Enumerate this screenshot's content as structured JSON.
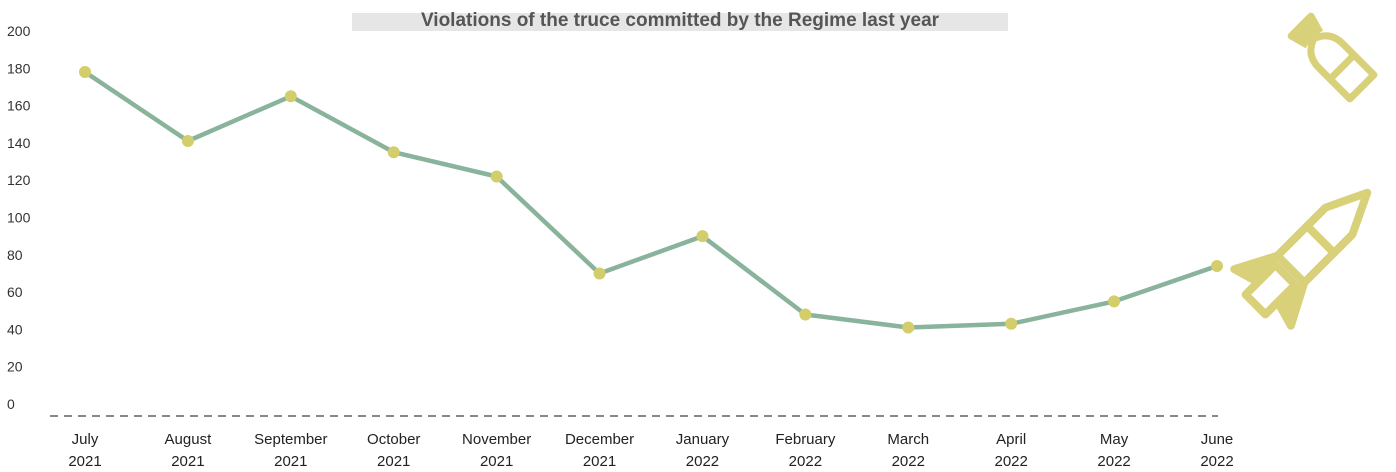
{
  "chart_data": {
    "type": "line",
    "title": "Violations of the truce committed by the Regime last year",
    "xlabel": "",
    "ylabel": "",
    "ylim": [
      0,
      200
    ],
    "yticks": [
      "0",
      "20",
      "40",
      "60",
      "80",
      "100",
      "120",
      "140",
      "160",
      "180",
      "200"
    ],
    "categories": [
      [
        "July",
        "2021"
      ],
      [
        "August",
        "2021"
      ],
      [
        "September",
        "2021"
      ],
      [
        "October",
        "2021"
      ],
      [
        "November",
        "2021"
      ],
      [
        "December",
        "2021"
      ],
      [
        "January",
        "2022"
      ],
      [
        "February",
        "2022"
      ],
      [
        "March",
        "2022"
      ],
      [
        "April",
        "2022"
      ],
      [
        "May",
        "2022"
      ],
      [
        "June",
        "2022"
      ]
    ],
    "values": [
      178,
      141,
      165,
      135,
      122,
      70,
      90,
      48,
      41,
      43,
      55,
      74
    ],
    "grid": false,
    "colors": {
      "line": "#8ab39c",
      "marker": "#d4cd6b",
      "baseline": "#888888",
      "title_band": "#e6e6e6",
      "icons": "#d9d07a"
    },
    "icons": [
      "aerial-bomb-icon",
      "missile-icon"
    ]
  }
}
